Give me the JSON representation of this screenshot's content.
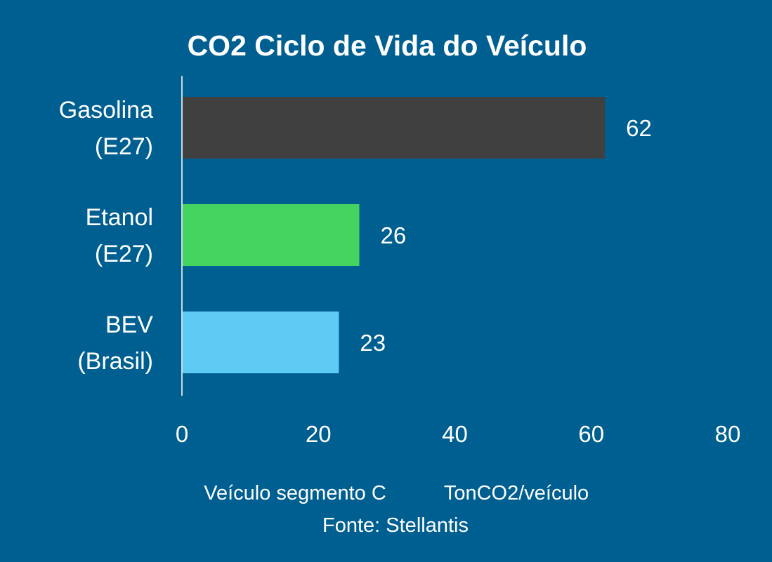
{
  "chart_data": {
    "type": "bar",
    "orientation": "horizontal",
    "title": "CO2 Ciclo de Vida do Veículo",
    "categories": [
      [
        "Gasolina",
        "(E27)"
      ],
      [
        "Etanol",
        "(E27)"
      ],
      [
        "BEV",
        "(Brasil)"
      ]
    ],
    "values": [
      62,
      26,
      23
    ],
    "data_labels": [
      "62",
      "26",
      "23"
    ],
    "bar_colors": [
      "#404040",
      "#46d460",
      "#5ecbf4"
    ],
    "xlim": [
      0,
      80
    ],
    "x_ticks": [
      0,
      20,
      40,
      60,
      80
    ],
    "x_tick_labels": [
      "0",
      "20",
      "40",
      "60",
      "80"
    ],
    "grid": false,
    "legend": "none",
    "footnote_line1_left": "Veículo segmento C",
    "footnote_line1_right": "TonCO2/veículo",
    "footnote_line2": "Fonte: Stellantis"
  },
  "colors": {
    "background": "#005f91",
    "axis": "#d0d8de",
    "text": "#ffffff"
  }
}
